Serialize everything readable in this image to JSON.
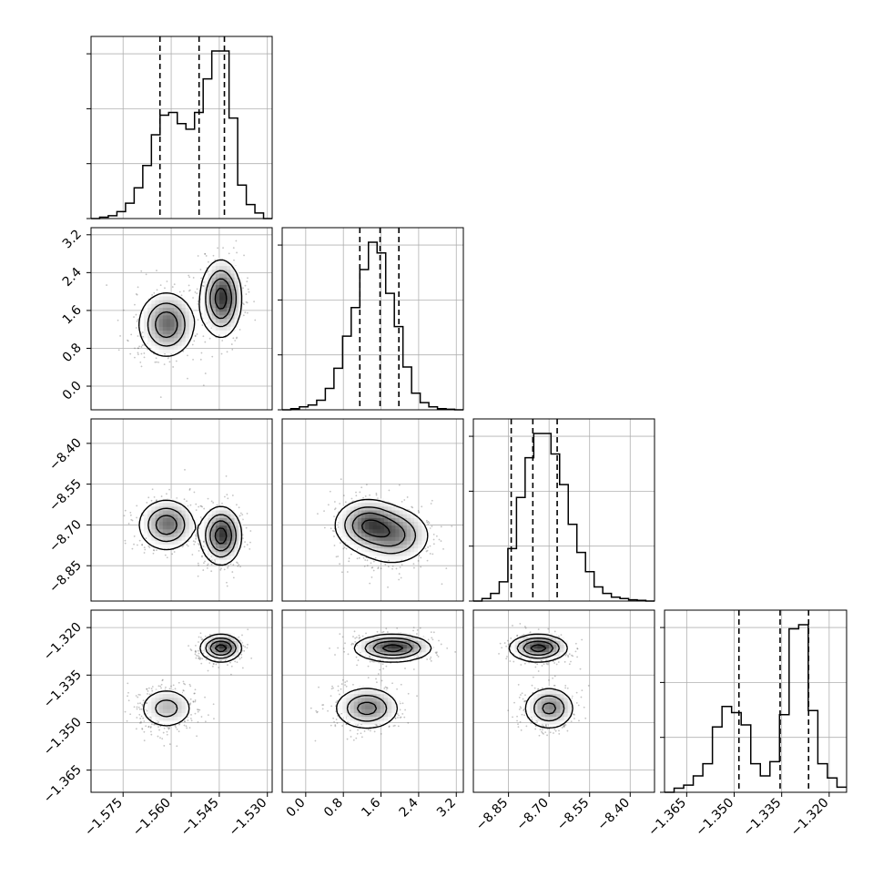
{
  "chart_data": {
    "type": "corner",
    "colors": {
      "line": "#000000",
      "grid": "#b0b0b0",
      "scatter": "#555555",
      "fill": "#808080",
      "background": "#ffffff"
    },
    "grid": true,
    "params": [
      {
        "range": [
          -1.585,
          -1.5285
        ],
        "ticks": [
          -1.575,
          -1.56,
          -1.545,
          -1.53
        ],
        "tick_labels": [
          "−1.575",
          "−1.560",
          "−1.545",
          "−1.530"
        ],
        "quantiles": [
          -1.5635,
          -1.5513,
          -1.5434
        ]
      },
      {
        "range": [
          -0.5,
          3.35
        ],
        "ticks": [
          0.0,
          0.8,
          1.6,
          2.4,
          3.2
        ],
        "tick_labels": [
          "0.0",
          "0.8",
          "1.6",
          "2.4",
          "3.2"
        ],
        "quantiles": [
          1.15,
          1.58,
          1.98
        ]
      },
      {
        "range": [
          -8.98,
          -8.31
        ],
        "ticks": [
          -8.85,
          -8.7,
          -8.55,
          -8.4
        ],
        "tick_labels": [
          "−8.85",
          "−8.70",
          "−8.55",
          "−8.40"
        ],
        "quantiles": [
          -8.84,
          -8.76,
          -8.67
        ]
      },
      {
        "range": [
          -1.372,
          -1.3145
        ],
        "ticks": [
          -1.365,
          -1.35,
          -1.335,
          -1.32
        ],
        "tick_labels": [
          "−1.365",
          "−1.350",
          "−1.335",
          "−1.320"
        ],
        "quantiles": [
          -1.3485,
          -1.3355,
          -1.3265
        ]
      }
    ],
    "histograms": [
      {
        "param": 0,
        "bins": [
          -1.585,
          -1.5285
        ],
        "counts": [
          0,
          0.5,
          1,
          2.5,
          5.5,
          11,
          19,
          30,
          37,
          38,
          34,
          32,
          38,
          50,
          60,
          60,
          36,
          12,
          5,
          2,
          0
        ]
      },
      {
        "param": 1,
        "bins": [
          -0.5,
          3.35
        ],
        "counts": [
          0,
          1,
          2.5,
          4,
          8,
          18,
          35,
          62,
          86,
          118,
          141,
          132,
          98,
          70,
          36,
          14,
          6,
          2.5,
          1,
          0.5,
          0
        ]
      },
      {
        "param": 2,
        "bins": [
          -8.98,
          -8.31
        ],
        "counts": [
          0,
          2,
          6,
          15,
          41,
          81,
          112,
          131,
          131,
          115,
          91,
          60,
          38,
          23,
          11,
          6,
          3,
          2,
          1,
          0.5,
          0
        ]
      },
      {
        "param": 3,
        "bins": [
          -1.372,
          -1.3145
        ],
        "counts": [
          0,
          2,
          3.5,
          8,
          14,
          32,
          42,
          39,
          33,
          14,
          8,
          15,
          38,
          80,
          82,
          40,
          14,
          7,
          2.5
        ]
      }
    ],
    "modes": [
      {
        "weight": 0.48,
        "mean": [
          -1.5615,
          1.3,
          -8.7,
          -1.3455
        ],
        "sd": [
          0.0042,
          0.33,
          0.045,
          0.0032
        ]
      },
      {
        "weight": 0.52,
        "mean": [
          -1.5445,
          1.85,
          -8.74,
          -1.3265
        ],
        "sd": [
          0.003,
          0.38,
          0.05,
          0.002
        ]
      }
    ],
    "contour_levels": [
      "0.5σ",
      "1σ",
      "1.5σ",
      "2σ"
    ]
  }
}
